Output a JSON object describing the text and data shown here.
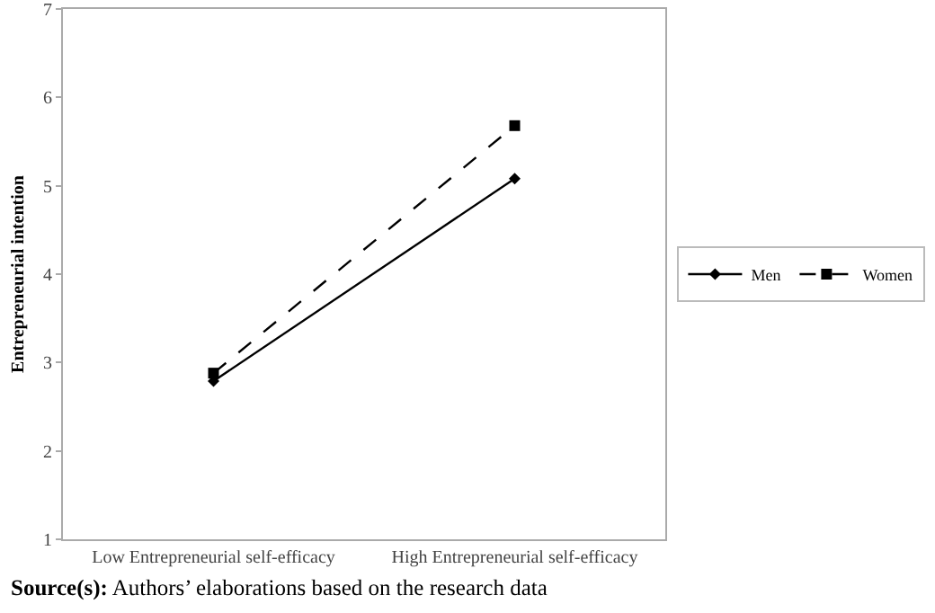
{
  "chart_data": {
    "type": "line",
    "ylabel": "Entrepreneurial intention",
    "categories": [
      "Low Entrepreneurial self-efficacy",
      "High Entrepreneurial self-efficacy"
    ],
    "series": [
      {
        "name": "Men",
        "color": "#000000",
        "values": [
          2.79,
          5.08
        ],
        "marker": "diamond",
        "line_style": "solid"
      },
      {
        "name": "Women",
        "color": "#000000",
        "values": [
          2.88,
          5.68
        ],
        "marker": "square",
        "line_style": "dashed"
      }
    ],
    "ylim": [
      1,
      7
    ],
    "yticks": [
      1,
      2,
      3,
      4,
      5,
      6,
      7
    ],
    "grid": false,
    "legend": "right",
    "annotations": [
      "Source(s): Authors’ elaborations based on the research data"
    ]
  }
}
